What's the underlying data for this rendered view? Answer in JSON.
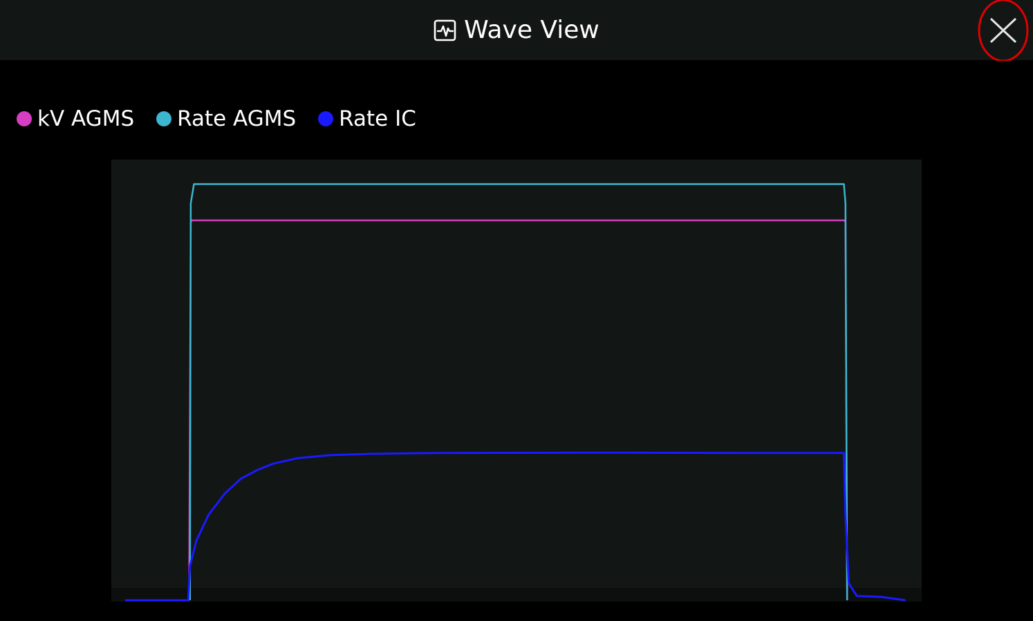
{
  "window": {
    "title": "Wave View",
    "title_icon": "waveform-box-icon",
    "close_icon": "close-icon",
    "close_highlight_color": "#e00000"
  },
  "legend": {
    "items": [
      {
        "label": "kV AGMS",
        "color": "#d83ec1"
      },
      {
        "label": "Rate AGMS",
        "color": "#3db6d0"
      },
      {
        "label": "Rate IC",
        "color": "#1a1aff"
      }
    ]
  },
  "chart_data": {
    "type": "line",
    "grid": false,
    "legend_position": "top-left",
    "xlim": [
      0,
      100
    ],
    "ylim": [
      0,
      100
    ],
    "series": [
      {
        "name": "kV AGMS",
        "color": "#d83ec1",
        "x": [
          9.6,
          9.8,
          9.9,
          90.5,
          90.6,
          90.8
        ],
        "y": [
          0,
          88.5,
          89,
          89,
          88.5,
          0
        ]
      },
      {
        "name": "Rate AGMS",
        "color": "#3db6d0",
        "x": [
          9.7,
          9.8,
          10.2,
          90.4,
          90.6,
          90.8
        ],
        "y": [
          0,
          93,
          97.5,
          97.5,
          93,
          0
        ]
      },
      {
        "name": "Rate IC",
        "color": "#1a1aff",
        "x": [
          1.7,
          9.5,
          9.7,
          10.5,
          12,
          14,
          16,
          18,
          20,
          23,
          27,
          32,
          40,
          60,
          80,
          90.4,
          90.6,
          91,
          92,
          95,
          98
        ],
        "y": [
          0,
          0,
          8,
          14,
          20,
          25,
          28.5,
          30.5,
          32,
          33.3,
          34,
          34.3,
          34.5,
          34.6,
          34.5,
          34.5,
          20,
          4,
          1,
          0.8,
          0
        ]
      }
    ]
  }
}
